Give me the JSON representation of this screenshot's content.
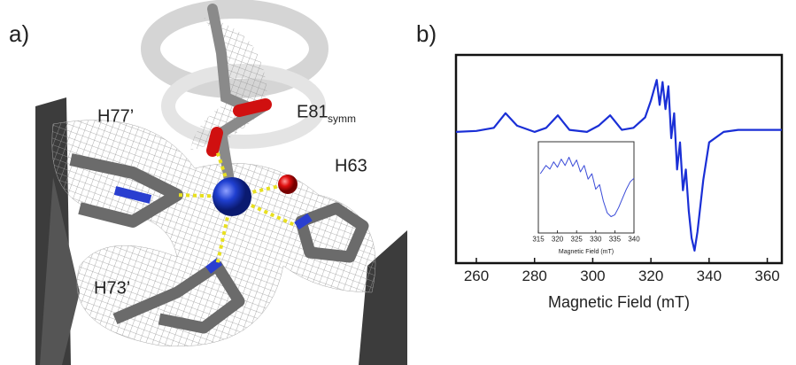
{
  "figure": {
    "panel_a_label": "a)",
    "panel_b_label": "b)",
    "residue_labels": [
      {
        "text": "H77’"
      },
      {
        "text": "E81",
        "subscript": "symm"
      },
      {
        "text": "H63"
      },
      {
        "text": "H73’"
      }
    ]
  },
  "chart_data": [
    {
      "type": "line",
      "xlabel": "Magnetic Field (mT)",
      "color": "#1a2fd6",
      "xlim": [
        253,
        365
      ],
      "xticks": [
        260,
        280,
        300,
        320,
        340,
        360
      ],
      "ylim": [
        -5,
        5
      ],
      "x": [
        253,
        260,
        266,
        270,
        274,
        280,
        284,
        288,
        292,
        298,
        302,
        306,
        310,
        314,
        318,
        320,
        322,
        323,
        324,
        325,
        326,
        327,
        328,
        329,
        330,
        331,
        332,
        333,
        334,
        335,
        336,
        338,
        340,
        345,
        350,
        360,
        365
      ],
      "values": [
        1.3,
        1.35,
        1.5,
        2.2,
        1.6,
        1.3,
        1.5,
        2.1,
        1.4,
        1.3,
        1.6,
        2.1,
        1.4,
        1.5,
        2.0,
        2.8,
        3.8,
        2.6,
        3.7,
        2.4,
        3.5,
        1.0,
        2.2,
        -0.5,
        0.8,
        -1.5,
        -0.5,
        -2.5,
        -3.8,
        -4.4,
        -3.5,
        -1.0,
        0.8,
        1.3,
        1.4,
        1.4,
        1.4
      ]
    },
    {
      "type": "line",
      "xlabel": "Magnetic Field (mT)",
      "color": "#3a4bd8",
      "xlim": [
        315,
        340
      ],
      "xticks": [
        315,
        320,
        325,
        330,
        335,
        340
      ],
      "ylim": [
        -5,
        5
      ],
      "x": [
        315.5,
        317,
        318,
        319,
        320,
        321,
        322,
        323,
        324,
        325,
        326,
        327,
        328,
        329,
        330,
        331,
        332,
        333,
        334,
        335,
        336,
        337,
        338,
        339,
        340
      ],
      "values": [
        1.5,
        2.4,
        2.0,
        2.8,
        2.2,
        3.1,
        2.4,
        3.3,
        2.3,
        3.0,
        1.7,
        2.4,
        0.9,
        1.5,
        -0.2,
        0.3,
        -1.5,
        -2.8,
        -3.2,
        -3.0,
        -2.2,
        -1.2,
        -0.2,
        0.6,
        1.0
      ]
    }
  ]
}
